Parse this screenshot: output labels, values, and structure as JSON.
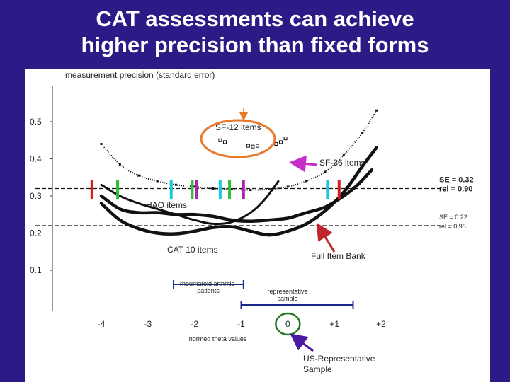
{
  "slide": {
    "title_line1": "CAT assessments can achieve",
    "title_line2": "higher precision than fixed forms",
    "background_color": "#2e1a86"
  },
  "chart_data": {
    "type": "line",
    "title": "",
    "ylabel": "measurement precision (standard error)",
    "xlabel": "normed theta values",
    "y_ticks": [
      "0.5",
      "0.4",
      "0.3",
      "0.2",
      "0.1"
    ],
    "x_ticks": [
      "-4",
      "-3",
      "-2",
      "-1",
      "0",
      "+1",
      "+2"
    ],
    "xlim": [
      -4.2,
      2.3
    ],
    "ylim": [
      0.0,
      0.58
    ],
    "reference_lines": [
      {
        "se": 0.32,
        "label_se": "SE = 0.32",
        "label_rel": "rel = 0.90"
      },
      {
        "se": 0.22,
        "label_se": "SE = 0.22",
        "label_rel": "rel = 0.95"
      }
    ],
    "series": [
      {
        "name": "SF-12 items",
        "x": [
          -1.45,
          -1.35,
          -0.85,
          -0.75,
          -0.65,
          -0.25,
          -0.15,
          -0.05
        ],
        "y": [
          0.45,
          0.445,
          0.435,
          0.433,
          0.435,
          0.44,
          0.445,
          0.455
        ]
      },
      {
        "name": "SF-36 items",
        "x": [
          -4.0,
          -3.6,
          -3.2,
          -2.8,
          -2.4,
          -2.0,
          -1.6,
          -1.2,
          -0.8,
          -0.4,
          0.0,
          0.4,
          0.8,
          1.2,
          1.6,
          1.9
        ],
        "y": [
          0.44,
          0.385,
          0.355,
          0.34,
          0.33,
          0.325,
          0.32,
          0.318,
          0.316,
          0.318,
          0.325,
          0.34,
          0.365,
          0.41,
          0.47,
          0.53
        ]
      },
      {
        "name": "HAQ items",
        "x": [
          -4.0,
          -3.6,
          -3.2,
          -2.8,
          -2.4,
          -2.0,
          -1.6,
          -1.2,
          -0.8,
          -0.5,
          -0.2
        ],
        "y": [
          0.33,
          0.3,
          0.28,
          0.265,
          0.25,
          0.235,
          0.225,
          0.23,
          0.255,
          0.29,
          0.34
        ]
      },
      {
        "name": "CAT 10 items",
        "x": [
          -4.0,
          -3.6,
          -3.2,
          -2.8,
          -2.4,
          -2.0,
          -1.6,
          -1.2,
          -0.8,
          -0.4,
          0.0,
          0.4,
          0.8,
          1.2,
          1.6,
          1.9
        ],
        "y": [
          0.28,
          0.235,
          0.212,
          0.2,
          0.198,
          0.205,
          0.215,
          0.217,
          0.205,
          0.195,
          0.205,
          0.225,
          0.26,
          0.31,
          0.38,
          0.43
        ]
      },
      {
        "name": "Full Item Bank",
        "x": [
          -4.0,
          -3.6,
          -3.2,
          -2.8,
          -2.4,
          -2.0,
          -1.6,
          -1.2,
          -0.8,
          -0.4,
          0.0,
          0.4,
          0.8,
          1.2,
          1.5,
          1.8
        ],
        "y": [
          0.3,
          0.265,
          0.255,
          0.255,
          0.25,
          0.25,
          0.245,
          0.235,
          0.232,
          0.235,
          0.24,
          0.255,
          0.27,
          0.3,
          0.33,
          0.37
        ]
      }
    ],
    "vertical_markers": [
      {
        "x": -4.2,
        "color": "#d81b1b"
      },
      {
        "x": -3.65,
        "color": "#2fbf3a"
      },
      {
        "x": -2.05,
        "color": "#2fbf3a"
      },
      {
        "x": -1.95,
        "color": "#b01fb0"
      },
      {
        "x": -1.25,
        "color": "#2fbf3a"
      },
      {
        "x": -0.95,
        "color": "#b01fb0"
      },
      {
        "x": -2.5,
        "color": "#18c8e0"
      },
      {
        "x": -1.45,
        "color": "#18c8e0"
      },
      {
        "x": 0.85,
        "color": "#18c8e0"
      },
      {
        "x": 1.1,
        "color": "#d81b1b"
      }
    ],
    "annotations": [
      {
        "text": "SF-12 items",
        "color": "#222222"
      },
      {
        "text": "SF-36 items",
        "color": "#222222"
      },
      {
        "text": "HAQ items",
        "color": "#222222"
      },
      {
        "text": "CAT 10 items",
        "color": "#222222"
      },
      {
        "text": "Full Item Bank",
        "color": "#222222"
      },
      {
        "text": "rheumatoid arthritis",
        "color": "#222222"
      },
      {
        "text": "patients",
        "color": "#222222"
      },
      {
        "text": "representative",
        "color": "#222222"
      },
      {
        "text": "sample",
        "color": "#222222"
      },
      {
        "text": "US-Representative",
        "color": "#222222"
      },
      {
        "text": "Sample",
        "color": "#222222"
      }
    ],
    "colors": {
      "sf12_circle": "#e8782a",
      "sf36_arrow": "#c72ec9",
      "full_bank_arrow": "#c0262b",
      "us_rep_circle": "#1f7a1f",
      "us_rep_arrow": "#4a1aa0",
      "range_bracket": "#1a2a8c"
    }
  }
}
